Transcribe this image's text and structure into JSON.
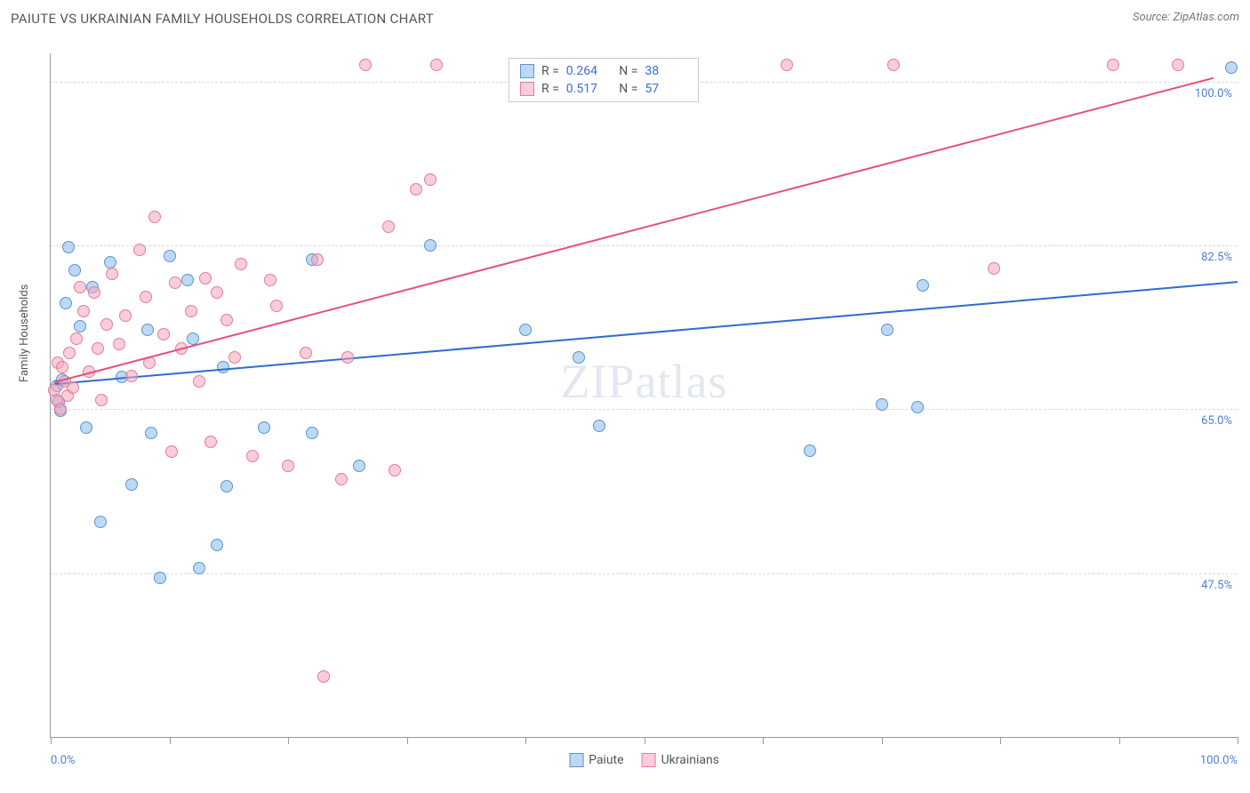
{
  "header": {
    "title": "PAIUTE VS UKRAINIAN FAMILY HOUSEHOLDS CORRELATION CHART",
    "source_prefix": "Source: ",
    "source": "ZipAtlas.com"
  },
  "chart": {
    "type": "scatter",
    "ylabel": "Family Households",
    "xlim": [
      0,
      100
    ],
    "ylim": [
      30,
      103
    ],
    "x_tick_step": 10,
    "grid_h": [
      47.5,
      65.0,
      82.5,
      100.0
    ],
    "y_tick_labels": [
      "47.5%",
      "65.0%",
      "82.5%",
      "100.0%"
    ],
    "x_min_label": "0.0%",
    "x_max_label": "100.0%",
    "background_color": "#ffffff",
    "grid_color": "#d9d9d9",
    "axis_value_color": "#4a7fd6",
    "marker_radius": 7,
    "series": [
      {
        "name": "Paiute",
        "marker_fill": "rgba(135, 185, 235, 0.55)",
        "marker_stroke": "#5a95d0",
        "trend_color": "#2f6bd0",
        "trend": {
          "x1": 0.3,
          "y1": 67.8,
          "x2": 100,
          "y2": 78.7
        },
        "R": "0.264",
        "N": "38",
        "points": [
          [
            0.5,
            67.5
          ],
          [
            0.7,
            65.8
          ],
          [
            0.8,
            64.8
          ],
          [
            1.0,
            68.2
          ],
          [
            1.3,
            76.3
          ],
          [
            1.5,
            82.3
          ],
          [
            2.0,
            79.8
          ],
          [
            2.5,
            73.9
          ],
          [
            3.0,
            63.0
          ],
          [
            3.5,
            78.0
          ],
          [
            4.2,
            53.0
          ],
          [
            5.0,
            80.7
          ],
          [
            6.0,
            68.4
          ],
          [
            6.8,
            57.0
          ],
          [
            8.2,
            73.5
          ],
          [
            8.5,
            62.5
          ],
          [
            9.2,
            47.0
          ],
          [
            10.0,
            81.4
          ],
          [
            11.5,
            78.8
          ],
          [
            12.0,
            72.5
          ],
          [
            12.5,
            48.0
          ],
          [
            14.0,
            50.5
          ],
          [
            14.5,
            69.5
          ],
          [
            14.8,
            56.8
          ],
          [
            18.0,
            63.0
          ],
          [
            22.0,
            81.0
          ],
          [
            22.0,
            62.5
          ],
          [
            26.0,
            59.0
          ],
          [
            32.0,
            82.5
          ],
          [
            40.0,
            73.5
          ],
          [
            44.5,
            70.5
          ],
          [
            46.2,
            63.2
          ],
          [
            64.0,
            60.6
          ],
          [
            70.0,
            65.5
          ],
          [
            70.5,
            73.5
          ],
          [
            73.5,
            78.2
          ],
          [
            73.0,
            65.2
          ],
          [
            99.5,
            101.5
          ]
        ]
      },
      {
        "name": "Ukrainians",
        "marker_fill": "rgba(245, 165, 185, 0.55)",
        "marker_stroke": "#e77a9a",
        "trend_color": "#e5517d",
        "trend": {
          "x1": 0.3,
          "y1": 68.0,
          "x2": 98,
          "y2": 100.5
        },
        "R": "0.517",
        "N": "57",
        "points": [
          [
            0.3,
            67.0
          ],
          [
            0.5,
            66.0
          ],
          [
            0.6,
            70.0
          ],
          [
            0.8,
            65.0
          ],
          [
            1.0,
            69.5
          ],
          [
            1.2,
            68.0
          ],
          [
            1.4,
            66.5
          ],
          [
            1.6,
            71.0
          ],
          [
            1.9,
            67.3
          ],
          [
            2.2,
            72.5
          ],
          [
            2.5,
            78.0
          ],
          [
            2.8,
            75.5
          ],
          [
            3.2,
            69.0
          ],
          [
            3.7,
            77.5
          ],
          [
            4.0,
            71.5
          ],
          [
            4.3,
            66.0
          ],
          [
            4.7,
            74.0
          ],
          [
            5.2,
            79.5
          ],
          [
            5.8,
            72.0
          ],
          [
            6.3,
            75.0
          ],
          [
            6.8,
            68.5
          ],
          [
            7.5,
            82.0
          ],
          [
            8.0,
            77.0
          ],
          [
            8.3,
            70.0
          ],
          [
            8.8,
            85.5
          ],
          [
            9.5,
            73.0
          ],
          [
            10.2,
            60.5
          ],
          [
            10.5,
            78.5
          ],
          [
            11.0,
            71.5
          ],
          [
            11.8,
            75.5
          ],
          [
            12.5,
            68.0
          ],
          [
            13.0,
            79.0
          ],
          [
            13.5,
            61.5
          ],
          [
            14.0,
            77.5
          ],
          [
            14.8,
            74.5
          ],
          [
            15.5,
            70.5
          ],
          [
            16.0,
            80.5
          ],
          [
            17.0,
            60.0
          ],
          [
            18.5,
            78.8
          ],
          [
            19.0,
            76.0
          ],
          [
            20.0,
            59.0
          ],
          [
            21.5,
            71.0
          ],
          [
            22.5,
            81.0
          ],
          [
            23.0,
            36.5
          ],
          [
            24.5,
            57.5
          ],
          [
            25.0,
            70.5
          ],
          [
            26.5,
            101.8
          ],
          [
            28.5,
            84.5
          ],
          [
            29.0,
            58.5
          ],
          [
            30.8,
            88.5
          ],
          [
            32.0,
            89.5
          ],
          [
            32.5,
            101.8
          ],
          [
            62.0,
            101.8
          ],
          [
            71.0,
            101.8
          ],
          [
            79.5,
            80.0
          ],
          [
            89.5,
            101.8
          ],
          [
            95.0,
            101.8
          ]
        ]
      }
    ],
    "legend_bottom": [
      {
        "label": "Paiute",
        "swatch_fill": "rgba(135,185,235,0.55)",
        "swatch_stroke": "#5a95d0"
      },
      {
        "label": "Ukrainians",
        "swatch_fill": "rgba(245,165,185,0.55)",
        "swatch_stroke": "#e77a9a"
      }
    ],
    "watermark": "ZIPatlas"
  }
}
